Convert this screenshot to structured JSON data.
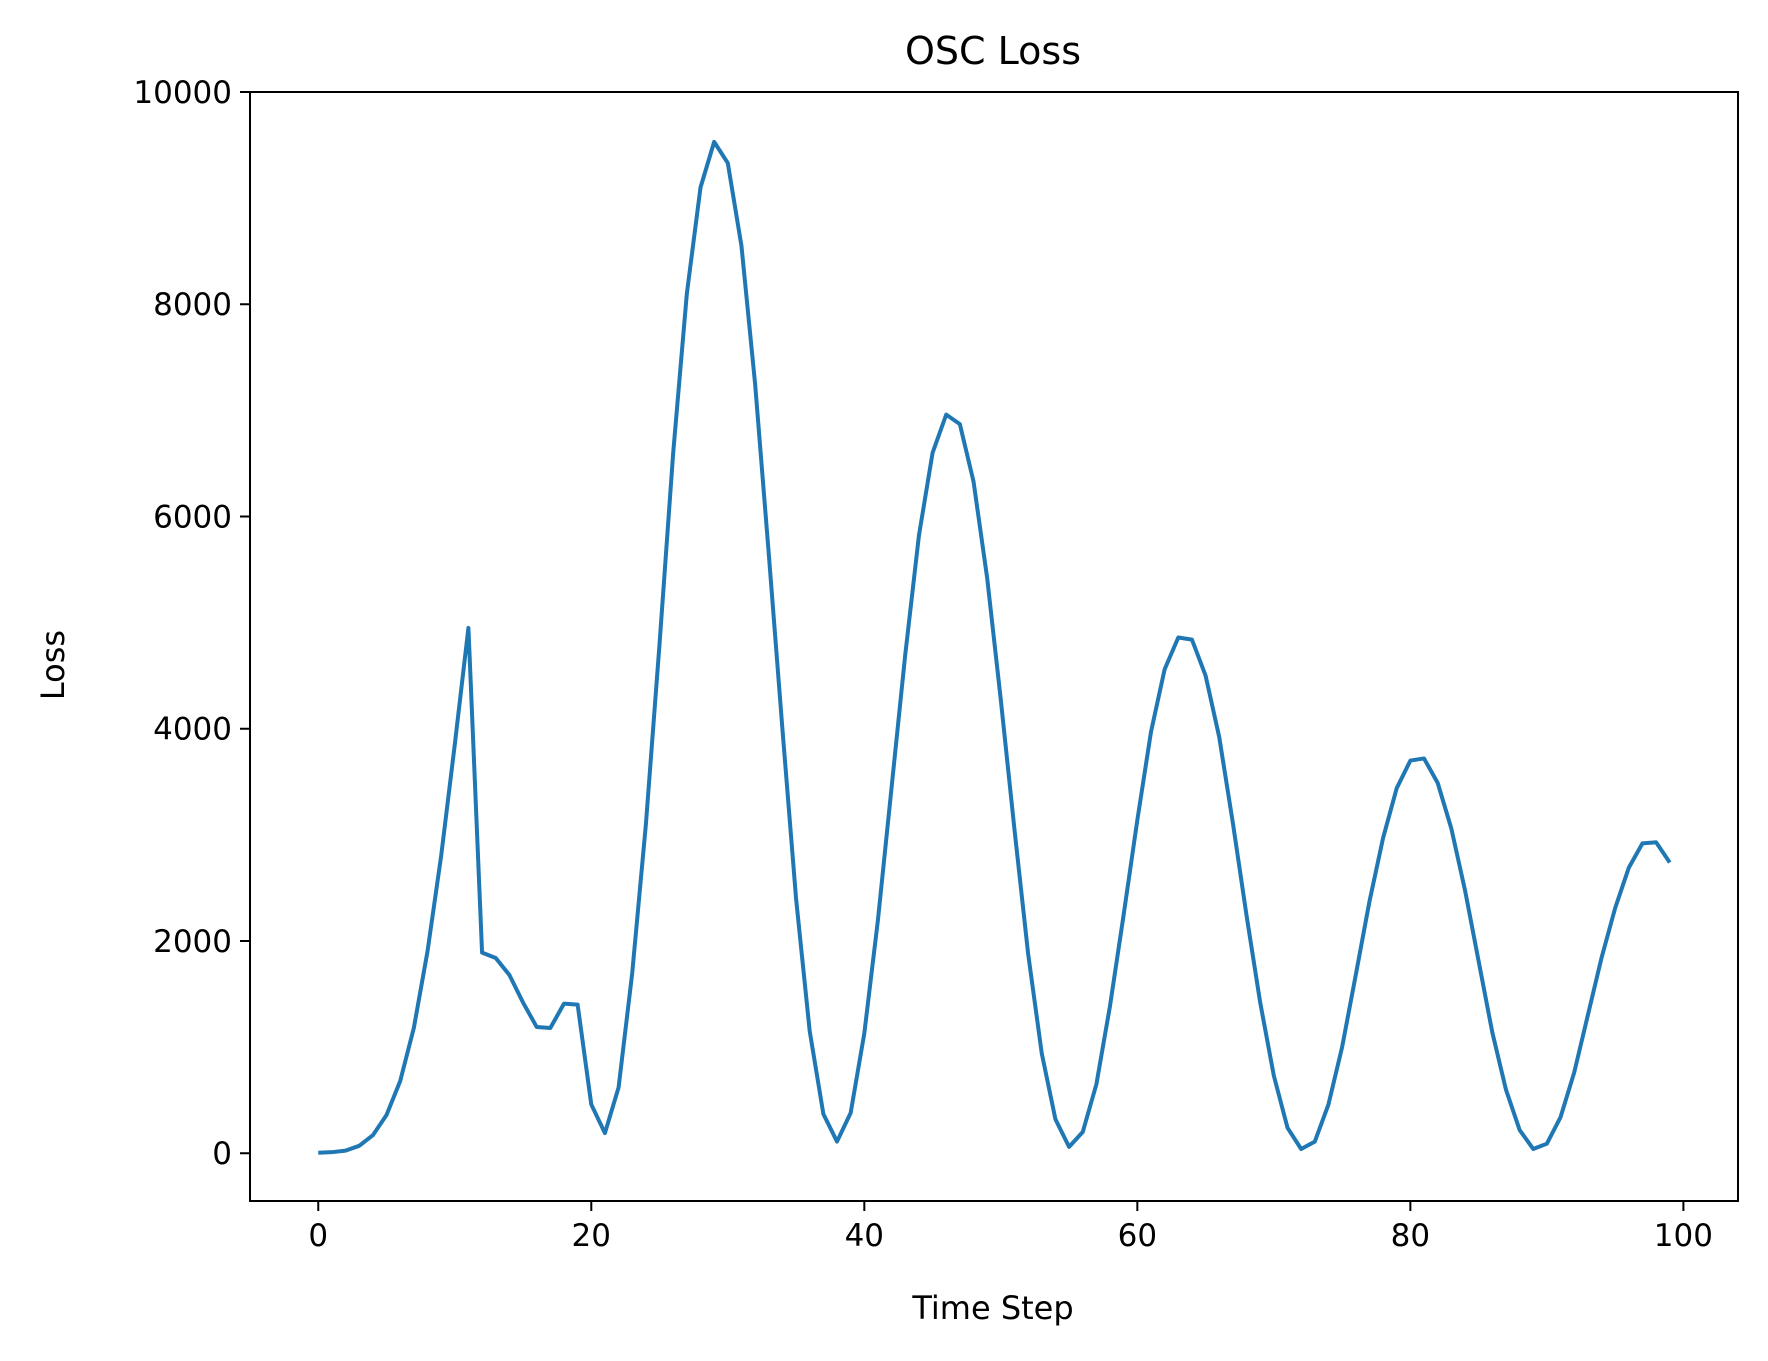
{
  "chart_data": {
    "type": "line",
    "title": "OSC Loss",
    "xlabel": "Time Step",
    "ylabel": "Loss",
    "xlim": [
      -5,
      104
    ],
    "ylim": [
      -450,
      10000
    ],
    "xticks": [
      0,
      20,
      40,
      60,
      80,
      100
    ],
    "yticks": [
      0,
      2000,
      4000,
      6000,
      8000,
      10000
    ],
    "grid": false,
    "series": [
      {
        "color": "#1f77b4",
        "x": [
          0,
          1,
          2,
          3,
          4,
          5,
          6,
          7,
          8,
          9,
          10,
          11,
          12,
          13,
          14,
          15,
          16,
          17,
          18,
          19,
          20,
          21,
          22,
          23,
          24,
          25,
          26,
          27,
          28,
          29,
          30,
          31,
          32,
          33,
          34,
          35,
          36,
          37,
          38,
          39,
          40,
          41,
          42,
          43,
          44,
          45,
          46,
          47,
          48,
          49,
          50,
          51,
          52,
          53,
          54,
          55,
          56,
          57,
          58,
          59,
          60,
          61,
          62,
          63,
          64,
          65,
          66,
          67,
          68,
          69,
          70,
          71,
          72,
          73,
          74,
          75,
          76,
          77,
          78,
          79,
          80,
          81,
          82,
          83,
          84,
          85,
          86,
          87,
          88,
          89,
          90,
          91,
          92,
          93,
          94,
          95,
          96,
          97,
          98,
          99
        ],
        "values": [
          5,
          10,
          25,
          70,
          170,
          360,
          680,
          1180,
          1900,
          2800,
          3850,
          4950,
          1890,
          1840,
          1680,
          1420,
          1190,
          1180,
          1410,
          1400,
          460,
          190,
          620,
          1700,
          3100,
          4800,
          6600,
          8100,
          9100,
          9530,
          9330,
          8550,
          7250,
          5650,
          4000,
          2400,
          1150,
          370,
          110,
          380,
          1130,
          2200,
          3450,
          4700,
          5820,
          6600,
          6960,
          6870,
          6330,
          5420,
          4270,
          3050,
          1880,
          940,
          320,
          60,
          200,
          650,
          1390,
          2250,
          3140,
          3970,
          4560,
          4860,
          4840,
          4500,
          3920,
          3110,
          2240,
          1420,
          730,
          240,
          40,
          110,
          460,
          1000,
          1680,
          2370,
          2970,
          3440,
          3700,
          3720,
          3490,
          3060,
          2480,
          1810,
          1140,
          600,
          220,
          40,
          90,
          340,
          760,
          1300,
          1840,
          2310,
          2690,
          2920,
          2930,
          2740
        ]
      }
    ]
  }
}
